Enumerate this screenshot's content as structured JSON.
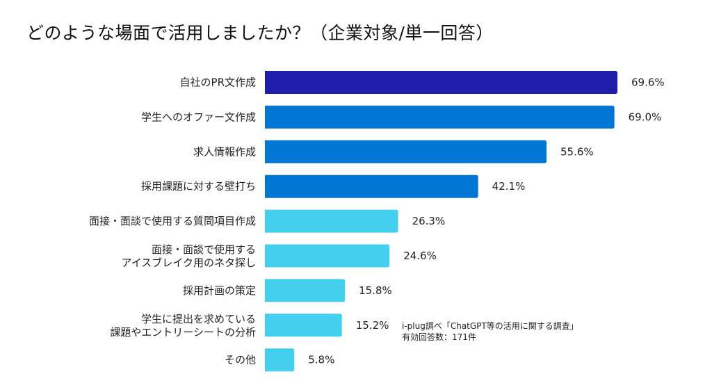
{
  "chart_data": {
    "type": "bar",
    "orientation": "horizontal",
    "title": "どのような場面で活用しましたか？（企業対象/単一回答）",
    "categories": [
      [
        "自社のPR文作成"
      ],
      [
        "学生へのオファー文作成"
      ],
      [
        "求人情報作成"
      ],
      [
        "採用課題に対する壁打ち"
      ],
      [
        "面接・面談で使用する質問項目作成"
      ],
      [
        "面接・面談で使用する",
        "アイスブレイク用のネタ探し"
      ],
      [
        "採用計画の策定"
      ],
      [
        "学生に提出を求めている",
        "課題やエントリーシートの分析"
      ],
      [
        "その他"
      ]
    ],
    "values": [
      69.6,
      69.0,
      55.6,
      42.1,
      26.3,
      24.6,
      15.8,
      15.2,
      5.8
    ],
    "value_labels": [
      "69.6%",
      "69.0%",
      "55.6%",
      "42.1%",
      "26.3%",
      "24.6%",
      "15.8%",
      "15.2%",
      "5.8%"
    ],
    "bar_colors": [
      "#1e1eaa",
      "#0077d4",
      "#0077d4",
      "#0077d4",
      "#45cfee",
      "#45cfee",
      "#45cfee",
      "#45cfee",
      "#45cfee"
    ],
    "xlim": [
      0,
      100
    ],
    "grid": false,
    "axes_visible": false
  },
  "note": {
    "line1": "i-plug調べ「ChatGPT等の活用に関する調査」",
    "line2": "有効回答数：171件"
  }
}
